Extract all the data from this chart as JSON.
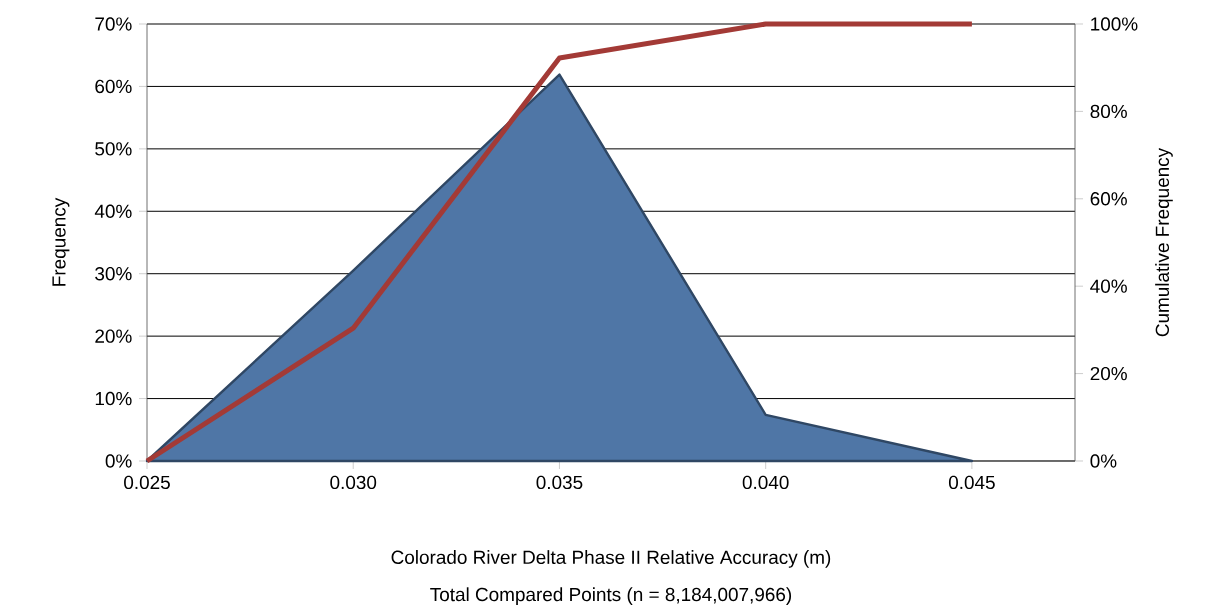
{
  "chart_data": {
    "type": "area",
    "xlabel": "Colorado River Delta Phase II Relative Accuracy (m)",
    "annotations": [
      "Total Compared Points (n = 8,184,007,966)"
    ],
    "ylabel": "Frequency",
    "y2label": "Cumulative Frequency",
    "x": [
      0.025,
      0.03,
      0.035,
      0.04,
      0.045
    ],
    "series": [
      {
        "color": "#4f76a6",
        "values": [
          0,
          30.5,
          61.9,
          7.4,
          0
        ]
      },
      {
        "type": "line",
        "axis": "y2",
        "color": "#a33a36",
        "values": [
          0,
          30.4,
          92.2,
          100,
          100
        ]
      }
    ],
    "xlim": [
      0.025,
      0.0475
    ],
    "xticks": [
      {
        "value": 0.025,
        "label": "0.025"
      },
      {
        "value": 0.03,
        "label": "0.030"
      },
      {
        "value": 0.035,
        "label": "0.035"
      },
      {
        "value": 0.04,
        "label": "0.040"
      },
      {
        "value": 0.045,
        "label": "0.045"
      }
    ],
    "ylim": [
      0,
      70
    ],
    "yticks": [
      {
        "value": 0,
        "label": "0%"
      },
      {
        "value": 10,
        "label": "10%"
      },
      {
        "value": 20,
        "label": "20%"
      },
      {
        "value": 30,
        "label": "30%"
      },
      {
        "value": 40,
        "label": "40%"
      },
      {
        "value": 50,
        "label": "50%"
      },
      {
        "value": 60,
        "label": "60%"
      },
      {
        "value": 70,
        "label": "70%"
      }
    ],
    "y2lim": [
      0,
      100
    ],
    "y2ticks": [
      {
        "value": 0,
        "label": "0%"
      },
      {
        "value": 20,
        "label": "20%"
      },
      {
        "value": 40,
        "label": "40%"
      },
      {
        "value": 60,
        "label": "60%"
      },
      {
        "value": 80,
        "label": "80%"
      },
      {
        "value": 100,
        "label": "100%"
      }
    ],
    "grid": "y"
  }
}
